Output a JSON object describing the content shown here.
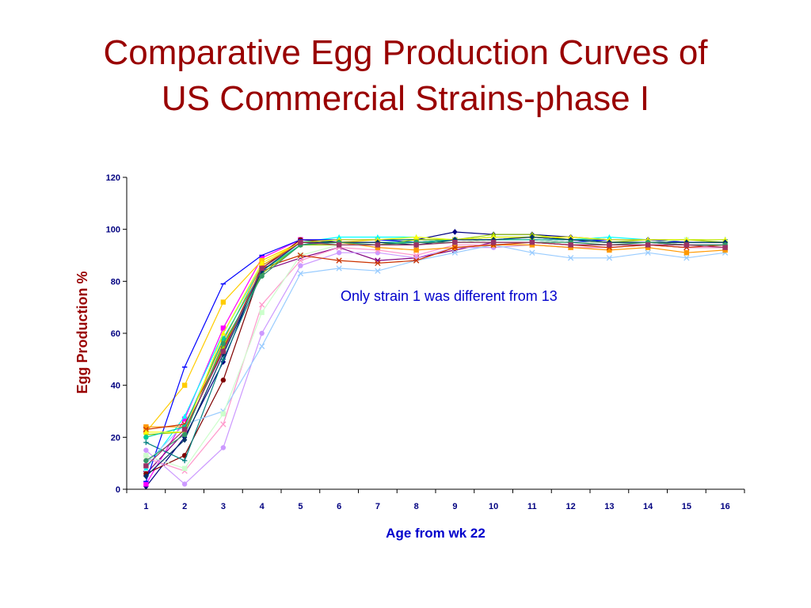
{
  "slide": {
    "title_line1": "Comparative Egg Production Curves of",
    "title_line2": "US Commercial Strains-phase I"
  },
  "colors": {
    "title": "#990000",
    "annotation": "#0000cc",
    "tick_labels": "#000080",
    "axis_line": "#000000"
  },
  "chart_data": {
    "type": "line",
    "title": "",
    "xlabel": "Age from wk 22",
    "ylabel": "Egg Production %",
    "x": [
      1,
      2,
      3,
      4,
      5,
      6,
      7,
      8,
      9,
      10,
      11,
      12,
      13,
      14,
      15,
      16
    ],
    "ylim": [
      0,
      120
    ],
    "yticks": [
      0,
      20,
      40,
      60,
      80,
      100,
      120
    ],
    "grid": false,
    "legend": "none",
    "annotation": "Only strain 1 was different from 13",
    "series": [
      {
        "color": "#000080",
        "marker": "diamond",
        "values": [
          1,
          20,
          49,
          86,
          95,
          96,
          96,
          96,
          99,
          98,
          98,
          97,
          96,
          96,
          95,
          95
        ]
      },
      {
        "color": "#ff00ff",
        "marker": "square",
        "values": [
          2,
          27,
          62,
          89,
          96,
          95,
          95,
          95,
          96,
          96,
          96,
          96,
          95,
          95,
          94,
          94
        ]
      },
      {
        "color": "#ffcc00",
        "marker": "square",
        "values": [
          22,
          40,
          72,
          88,
          95,
          95,
          96,
          96,
          96,
          96,
          97,
          96,
          95,
          95,
          95,
          95
        ]
      },
      {
        "color": "#00ffff",
        "marker": "triangle",
        "values": [
          8,
          28,
          60,
          86,
          95,
          97,
          97,
          97,
          96,
          97,
          97,
          96,
          97,
          96,
          96,
          96
        ]
      },
      {
        "color": "#800080",
        "marker": "x",
        "values": [
          6,
          22,
          54,
          84,
          89,
          93,
          88,
          89,
          92,
          95,
          95,
          94,
          94,
          94,
          93,
          93
        ]
      },
      {
        "color": "#800000",
        "marker": "circle",
        "values": [
          6,
          13,
          42,
          85,
          96,
          95,
          95,
          95,
          95,
          96,
          96,
          95,
          95,
          95,
          94,
          94
        ]
      },
      {
        "color": "#008080",
        "marker": "plus",
        "values": [
          18,
          11,
          50,
          83,
          94,
          96,
          96,
          96,
          96,
          97,
          97,
          96,
          96,
          96,
          96,
          96
        ]
      },
      {
        "color": "#0000ff",
        "marker": "dash",
        "values": [
          3,
          47,
          79,
          90,
          96,
          96,
          96,
          95,
          96,
          96,
          96,
          95,
          96,
          96,
          95,
          95
        ]
      },
      {
        "color": "#cc99ff",
        "marker": "circle",
        "values": [
          15,
          2,
          16,
          60,
          86,
          91,
          91,
          89,
          93,
          93,
          94,
          93,
          93,
          94,
          94,
          94
        ]
      },
      {
        "color": "#ff99cc",
        "marker": "x",
        "values": [
          12,
          7,
          25,
          71,
          88,
          93,
          92,
          90,
          94,
          94,
          94,
          93,
          93,
          94,
          93,
          93
        ]
      },
      {
        "color": "#99ccff",
        "marker": "x",
        "values": [
          10,
          25,
          30,
          55,
          83,
          85,
          84,
          88,
          91,
          94,
          91,
          89,
          89,
          91,
          89,
          91
        ]
      },
      {
        "color": "#ccffcc",
        "marker": "square",
        "values": [
          13,
          8,
          29,
          68,
          90,
          94,
          94,
          94,
          95,
          96,
          96,
          95,
          95,
          95,
          96,
          95
        ]
      },
      {
        "color": "#ff9900",
        "marker": "square",
        "values": [
          24,
          24,
          57,
          86,
          95,
          95,
          93,
          92,
          93,
          94,
          94,
          93,
          92,
          93,
          91,
          92
        ]
      },
      {
        "color": "#cc3300",
        "marker": "x",
        "values": [
          23,
          25,
          54,
          85,
          90,
          88,
          87,
          88,
          93,
          94,
          95,
          94,
          93,
          94,
          93,
          94
        ]
      },
      {
        "color": "#99cc00",
        "marker": "triangle",
        "values": [
          21,
          22,
          55,
          83,
          94,
          94,
          94,
          96,
          96,
          98,
          98,
          96,
          95,
          96,
          96,
          95
        ]
      },
      {
        "color": "#00cc99",
        "marker": "circle",
        "values": [
          20,
          24,
          58,
          84,
          94,
          95,
          95,
          95,
          96,
          96,
          96,
          96,
          95,
          95,
          95,
          95
        ]
      },
      {
        "color": "#ffff00",
        "marker": "triangle",
        "values": [
          22,
          22,
          60,
          87,
          95,
          96,
          96,
          97,
          96,
          97,
          97,
          97,
          96,
          96,
          96,
          96
        ]
      },
      {
        "color": "#003366",
        "marker": "diamond",
        "values": [
          5,
          19,
          52,
          84,
          95,
          95,
          95,
          94,
          96,
          96,
          97,
          96,
          95,
          95,
          95,
          95
        ]
      },
      {
        "color": "#339966",
        "marker": "circle",
        "values": [
          11,
          21,
          56,
          82,
          94,
          95,
          94,
          95,
          95,
          95,
          95,
          95,
          94,
          95,
          94,
          94
        ]
      },
      {
        "color": "#993366",
        "marker": "square",
        "values": [
          9,
          23,
          53,
          85,
          95,
          94,
          94,
          94,
          95,
          95,
          95,
          94,
          94,
          94,
          94,
          93
        ]
      }
    ]
  }
}
